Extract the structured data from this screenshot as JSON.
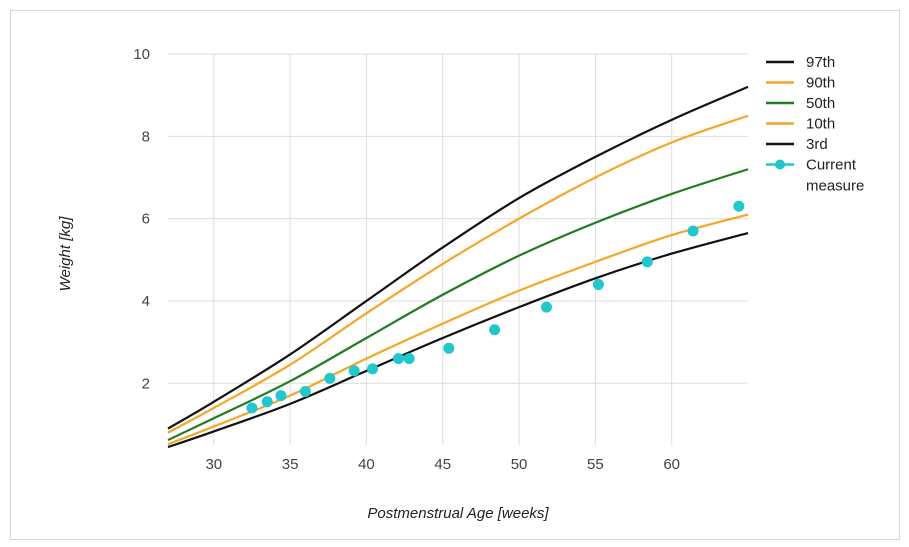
{
  "chart_data": {
    "type": "line",
    "title": "",
    "xlabel": "Postmenstrual Age [weeks]",
    "ylabel": "Weight [kg]",
    "xlim": [
      27,
      65
    ],
    "ylim": [
      0.5,
      10
    ],
    "xticks": [
      30,
      35,
      40,
      45,
      50,
      55,
      60
    ],
    "yticks": [
      2,
      4,
      6,
      8,
      10
    ],
    "grid": true,
    "legend_position": "right",
    "x": [
      27,
      30,
      35,
      40,
      45,
      50,
      55,
      60,
      65
    ],
    "series": [
      {
        "name": "97th",
        "color": "#111111",
        "values": [
          0.9,
          1.55,
          2.7,
          4.0,
          5.3,
          6.5,
          7.5,
          8.4,
          9.2
        ]
      },
      {
        "name": "90th",
        "color": "#f5a623",
        "values": [
          0.8,
          1.4,
          2.45,
          3.7,
          4.9,
          6.0,
          7.0,
          7.85,
          8.5
        ]
      },
      {
        "name": "50th",
        "color": "#1e7d1e",
        "values": [
          0.62,
          1.15,
          2.05,
          3.1,
          4.15,
          5.1,
          5.9,
          6.6,
          7.2
        ]
      },
      {
        "name": "10th",
        "color": "#f5a623",
        "values": [
          0.52,
          0.95,
          1.7,
          2.6,
          3.45,
          4.25,
          4.95,
          5.6,
          6.1
        ]
      },
      {
        "name": "3rd",
        "color": "#111111",
        "values": [
          0.45,
          0.83,
          1.5,
          2.3,
          3.1,
          3.85,
          4.55,
          5.15,
          5.65
        ]
      }
    ],
    "points": {
      "name": "Current measure",
      "color": "#1ec8cc",
      "x": [
        32.5,
        33.5,
        34.4,
        36.0,
        37.6,
        39.2,
        40.4,
        42.1,
        42.8,
        45.4,
        48.4,
        51.8,
        55.2,
        58.4,
        61.4,
        64.4
      ],
      "y": [
        1.4,
        1.55,
        1.7,
        1.8,
        2.12,
        2.3,
        2.35,
        2.6,
        2.6,
        2.85,
        3.3,
        3.85,
        4.4,
        4.95,
        5.7,
        6.3
      ]
    }
  }
}
